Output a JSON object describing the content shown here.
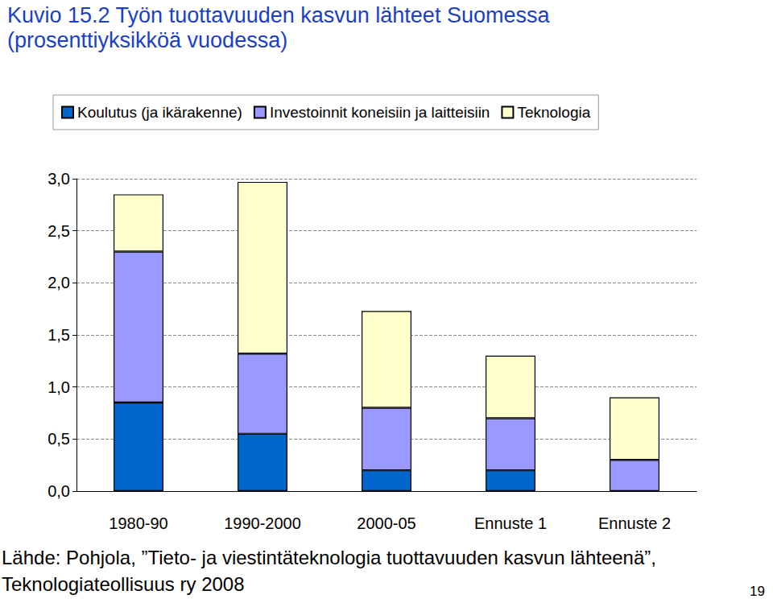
{
  "chart_data": {
    "type": "bar",
    "title": "Kuvio 15.2 Työn tuottavuuden kasvun lähteet Suomessa",
    "subtitle": "(prosenttiyksikköä vuodessa)",
    "source": "Lähde: Pohjola, ”Tieto- ja viestintäteknologia tuottavuuden kasvun lähteenä”, Teknologiateollisuus ry 2008",
    "page_number": "19",
    "categories": [
      "1980-90",
      "1990-2000",
      "2000-05",
      "Ennuste 1",
      "Ennuste 2"
    ],
    "series": [
      {
        "name": "Koulutus (ja ikärakenne)",
        "color": "#0066cc",
        "values": [
          0.85,
          0.55,
          0.2,
          0.2,
          0
        ]
      },
      {
        "name": "Investoinnit koneisiin ja laitteisiin",
        "color": "#9999ff",
        "values": [
          1.45,
          0.77,
          0.6,
          0.5,
          0.3
        ]
      },
      {
        "name": "Teknologia",
        "color": "#ffffcc",
        "values": [
          0.55,
          1.65,
          0.93,
          0.6,
          0.6
        ]
      }
    ],
    "stacked": true,
    "ylim": [
      0,
      3
    ],
    "yticks": [
      {
        "value": 0,
        "label": "0,0"
      },
      {
        "value": 0.5,
        "label": "0,5"
      },
      {
        "value": 1,
        "label": "1,0"
      },
      {
        "value": 1.5,
        "label": "1,5"
      },
      {
        "value": 2,
        "label": "2,0"
      },
      {
        "value": 2.5,
        "label": "2,5"
      },
      {
        "value": 3,
        "label": "3,0"
      }
    ],
    "grid": true,
    "legend": "top"
  }
}
